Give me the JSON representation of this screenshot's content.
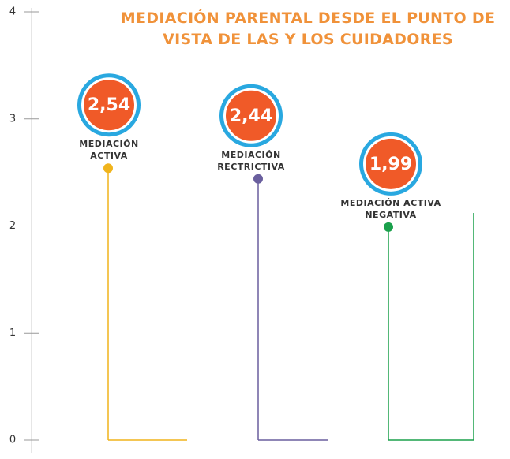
{
  "chart_data": {
    "type": "lollipop",
    "title": "MEDIACIÓN PARENTAL DESDE EL PUNTO DE VISTA DE LAS Y LOS CUIDADORES",
    "categories": [
      "MEDIACIÓN ACTIVA",
      "MEDIACIÓN RECTRICTIVA",
      "MEDIACIÓN ACTIVA NEGATIVA"
    ],
    "values": [
      2.54,
      2.44,
      1.99
    ],
    "value_labels": [
      "2,54",
      "2,44",
      "1,99"
    ],
    "colors": [
      "#f0b41c",
      "#6a5f9e",
      "#1aa04b"
    ],
    "ylim": [
      0,
      4
    ],
    "yticks": [
      0,
      1,
      2,
      3,
      4
    ]
  }
}
